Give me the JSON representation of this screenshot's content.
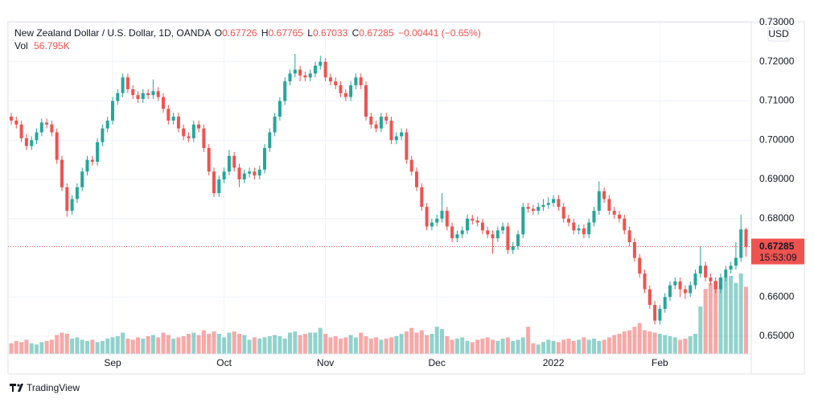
{
  "header": {
    "symbol": "New Zealand Dollar / U.S. Dollar, 1D, OANDA",
    "open_label": "O",
    "open": "0.67726",
    "high_label": "H",
    "high": "0.67765",
    "low_label": "L",
    "low": "0.67033",
    "close_label": "C",
    "close": "0.67285",
    "change": "−0.00441 (−0.65%)",
    "volume_label": "Vol",
    "volume": "56.795K"
  },
  "chart_data": {
    "type": "candlestick",
    "open": [
      0.706,
      0.705,
      0.704,
      0.7005,
      0.6985,
      0.7,
      0.702,
      0.7045,
      0.704,
      0.702,
      0.695,
      0.688,
      0.682,
      0.685,
      0.688,
      0.692,
      0.695,
      0.6945,
      0.6995,
      0.703,
      0.705,
      0.71,
      0.712,
      0.716,
      0.713,
      0.7115,
      0.7105,
      0.712,
      0.7115,
      0.7125,
      0.711,
      0.708,
      0.705,
      0.706,
      0.703,
      0.701,
      0.7005,
      0.704,
      0.703,
      0.698,
      0.692,
      0.6865,
      0.69,
      0.692,
      0.696,
      0.693,
      0.69,
      0.6915,
      0.692,
      0.691,
      0.6925,
      0.698,
      0.702,
      0.706,
      0.71,
      0.715,
      0.717,
      0.718,
      0.7165,
      0.716,
      0.717,
      0.719,
      0.72,
      0.716,
      0.715,
      0.714,
      0.712,
      0.711,
      0.714,
      0.716,
      0.714,
      0.706,
      0.704,
      0.703,
      0.706,
      0.705,
      0.7,
      0.701,
      0.702,
      0.695,
      0.692,
      0.688,
      0.683,
      0.678,
      0.679,
      0.68,
      0.682,
      0.678,
      0.675,
      0.676,
      0.677,
      0.68,
      0.6795,
      0.679,
      0.677,
      0.676,
      0.675,
      0.677,
      0.678,
      0.672,
      0.673,
      0.676,
      0.683,
      0.6825,
      0.682,
      0.683,
      0.6835,
      0.684,
      0.685,
      0.683,
      0.68,
      0.679,
      0.677,
      0.6775,
      0.676,
      0.679,
      0.682,
      0.687,
      0.685,
      0.682,
      0.681,
      0.68,
      0.677,
      0.674,
      0.67,
      0.666,
      0.662,
      0.658,
      0.654,
      0.657,
      0.66,
      0.663,
      0.664,
      0.662,
      0.661,
      0.663,
      0.666,
      0.668,
      0.665,
      0.664,
      0.662,
      0.665,
      0.667,
      0.668,
      0.67,
      0.67726
    ],
    "high": [
      0.707,
      0.706,
      0.705,
      0.7015,
      0.701,
      0.703,
      0.7055,
      0.7055,
      0.705,
      0.703,
      0.696,
      0.689,
      0.686,
      0.689,
      0.693,
      0.696,
      0.696,
      0.7005,
      0.704,
      0.706,
      0.711,
      0.713,
      0.717,
      0.717,
      0.714,
      0.7125,
      0.713,
      0.713,
      0.7155,
      0.7135,
      0.712,
      0.709,
      0.707,
      0.707,
      0.704,
      0.702,
      0.705,
      0.705,
      0.704,
      0.699,
      0.693,
      0.691,
      0.693,
      0.6975,
      0.697,
      0.694,
      0.6925,
      0.693,
      0.693,
      0.6935,
      0.699,
      0.703,
      0.707,
      0.711,
      0.716,
      0.718,
      0.722,
      0.719,
      0.7175,
      0.718,
      0.72,
      0.7215,
      0.721,
      0.717,
      0.716,
      0.715,
      0.713,
      0.715,
      0.717,
      0.717,
      0.715,
      0.707,
      0.705,
      0.707,
      0.707,
      0.706,
      0.702,
      0.703,
      0.703,
      0.696,
      0.693,
      0.689,
      0.684,
      0.68,
      0.681,
      0.6865,
      0.683,
      0.679,
      0.677,
      0.678,
      0.681,
      0.681,
      0.6805,
      0.68,
      0.678,
      0.677,
      0.678,
      0.679,
      0.679,
      0.674,
      0.677,
      0.684,
      0.684,
      0.6835,
      0.684,
      0.685,
      0.6855,
      0.686,
      0.686,
      0.684,
      0.681,
      0.68,
      0.6785,
      0.6785,
      0.68,
      0.683,
      0.6895,
      0.688,
      0.686,
      0.683,
      0.682,
      0.681,
      0.678,
      0.675,
      0.671,
      0.667,
      0.663,
      0.659,
      0.658,
      0.661,
      0.664,
      0.665,
      0.665,
      0.663,
      0.664,
      0.667,
      0.673,
      0.669,
      0.666,
      0.665,
      0.666,
      0.668,
      0.669,
      0.674,
      0.681,
      0.67765
    ],
    "low": [
      0.704,
      0.703,
      0.6995,
      0.6975,
      0.6975,
      0.699,
      0.701,
      0.703,
      0.701,
      0.694,
      0.687,
      0.6805,
      0.681,
      0.684,
      0.687,
      0.691,
      0.6935,
      0.6935,
      0.6985,
      0.702,
      0.704,
      0.709,
      0.711,
      0.712,
      0.7105,
      0.7095,
      0.7095,
      0.7105,
      0.7105,
      0.71,
      0.707,
      0.704,
      0.704,
      0.702,
      0.7,
      0.6995,
      0.6995,
      0.702,
      0.697,
      0.691,
      0.6855,
      0.6855,
      0.689,
      0.691,
      0.692,
      0.688,
      0.689,
      0.6905,
      0.69,
      0.69,
      0.6915,
      0.697,
      0.701,
      0.705,
      0.709,
      0.714,
      0.716,
      0.715,
      0.715,
      0.715,
      0.716,
      0.718,
      0.715,
      0.714,
      0.713,
      0.711,
      0.71,
      0.71,
      0.713,
      0.713,
      0.705,
      0.703,
      0.702,
      0.702,
      0.704,
      0.699,
      0.699,
      0.7,
      0.694,
      0.691,
      0.687,
      0.682,
      0.677,
      0.677,
      0.678,
      0.679,
      0.677,
      0.674,
      0.674,
      0.675,
      0.676,
      0.6785,
      0.678,
      0.676,
      0.675,
      0.671,
      0.674,
      0.676,
      0.671,
      0.671,
      0.672,
      0.675,
      0.6815,
      0.681,
      0.681,
      0.682,
      0.6825,
      0.683,
      0.682,
      0.679,
      0.678,
      0.676,
      0.676,
      0.675,
      0.675,
      0.678,
      0.681,
      0.684,
      0.681,
      0.68,
      0.679,
      0.676,
      0.673,
      0.669,
      0.665,
      0.661,
      0.657,
      0.653,
      0.653,
      0.656,
      0.659,
      0.662,
      0.66,
      0.6595,
      0.66,
      0.662,
      0.665,
      0.664,
      0.663,
      0.661,
      0.661,
      0.664,
      0.666,
      0.667,
      0.669,
      0.67033
    ],
    "close": [
      0.705,
      0.704,
      0.7005,
      0.6985,
      0.7,
      0.702,
      0.7045,
      0.704,
      0.702,
      0.695,
      0.688,
      0.682,
      0.685,
      0.688,
      0.692,
      0.695,
      0.6945,
      0.6995,
      0.703,
      0.705,
      0.71,
      0.712,
      0.716,
      0.713,
      0.7115,
      0.7105,
      0.712,
      0.7115,
      0.7125,
      0.711,
      0.708,
      0.705,
      0.706,
      0.703,
      0.701,
      0.7005,
      0.704,
      0.703,
      0.698,
      0.692,
      0.6865,
      0.69,
      0.692,
      0.696,
      0.693,
      0.69,
      0.6915,
      0.692,
      0.691,
      0.6925,
      0.698,
      0.702,
      0.706,
      0.71,
      0.715,
      0.717,
      0.718,
      0.7165,
      0.716,
      0.717,
      0.719,
      0.72,
      0.716,
      0.715,
      0.714,
      0.712,
      0.711,
      0.714,
      0.716,
      0.714,
      0.706,
      0.704,
      0.703,
      0.706,
      0.705,
      0.7,
      0.701,
      0.702,
      0.695,
      0.692,
      0.688,
      0.683,
      0.678,
      0.679,
      0.68,
      0.682,
      0.678,
      0.675,
      0.676,
      0.677,
      0.68,
      0.6795,
      0.679,
      0.677,
      0.676,
      0.675,
      0.677,
      0.678,
      0.672,
      0.673,
      0.676,
      0.683,
      0.6825,
      0.682,
      0.683,
      0.6835,
      0.684,
      0.685,
      0.683,
      0.68,
      0.679,
      0.677,
      0.6775,
      0.676,
      0.679,
      0.682,
      0.687,
      0.685,
      0.682,
      0.681,
      0.68,
      0.677,
      0.674,
      0.67,
      0.666,
      0.662,
      0.658,
      0.654,
      0.657,
      0.66,
      0.663,
      0.664,
      0.662,
      0.661,
      0.663,
      0.666,
      0.668,
      0.665,
      0.664,
      0.662,
      0.665,
      0.667,
      0.668,
      0.67,
      0.67726,
      0.67285
    ],
    "volume": [
      9000,
      11000,
      10000,
      12000,
      9000,
      8000,
      10000,
      11000,
      12000,
      16000,
      18000,
      17000,
      13000,
      14000,
      12000,
      11000,
      12000,
      10000,
      11000,
      13000,
      14000,
      15000,
      18000,
      13000,
      12000,
      14000,
      13000,
      15000,
      16000,
      14000,
      18000,
      16000,
      13000,
      14000,
      15000,
      17000,
      18000,
      16000,
      20000,
      17000,
      19000,
      17000,
      14000,
      18000,
      19000,
      17000,
      16000,
      12000,
      14000,
      13000,
      14000,
      15000,
      16000,
      15000,
      13000,
      18000,
      19000,
      16000,
      17000,
      18000,
      18000,
      22000,
      17000,
      14000,
      15000,
      13000,
      14000,
      16000,
      14000,
      18000,
      15000,
      13000,
      14000,
      12000,
      13000,
      14000,
      15000,
      17000,
      19000,
      22000,
      18000,
      20000,
      16000,
      17000,
      23000,
      21000,
      15000,
      12000,
      13000,
      14000,
      11000,
      10000,
      12000,
      13000,
      14000,
      12000,
      11000,
      13000,
      14000,
      11000,
      12000,
      14000,
      23000,
      9000,
      8000,
      10000,
      12000,
      11000,
      10000,
      12000,
      13000,
      11000,
      12000,
      14000,
      12000,
      13000,
      11000,
      12000,
      14000,
      16000,
      17000,
      19000,
      20000,
      23000,
      26000,
      20000,
      19000,
      18000,
      17000,
      16000,
      15000,
      14000,
      12000,
      13000,
      15000,
      17000,
      40000,
      55000,
      60000,
      62000,
      64000,
      65000,
      66000,
      60000,
      68000,
      56795
    ],
    "up_color": "#26a69a",
    "down_color": "#ef5350",
    "ylim": [
      0.6455,
      0.73
    ],
    "yticks": [
      {
        "value": 0.65,
        "label": "0.65000"
      },
      {
        "value": 0.66,
        "label": "0.66000"
      },
      {
        "value": 0.68,
        "label": "0.68000"
      },
      {
        "value": 0.69,
        "label": "0.69000"
      },
      {
        "value": 0.7,
        "label": "0.70000"
      },
      {
        "value": 0.71,
        "label": "0.71000"
      },
      {
        "value": 0.72,
        "label": "0.72000"
      },
      {
        "value": 0.73,
        "label": "0.73000"
      }
    ],
    "xticks": [
      {
        "value": 20,
        "label": "Sep"
      },
      {
        "value": 42,
        "label": "Oct"
      },
      {
        "value": 62,
        "label": "Nov"
      },
      {
        "value": 84,
        "label": "Dec"
      },
      {
        "value": 107,
        "label": "2022"
      },
      {
        "value": 128,
        "label": "Feb"
      }
    ],
    "grid": true,
    "currency": "USD",
    "last_price_label": "0.67285",
    "countdown": "15:53:09"
  },
  "footer": {
    "brand": "TradingView"
  }
}
